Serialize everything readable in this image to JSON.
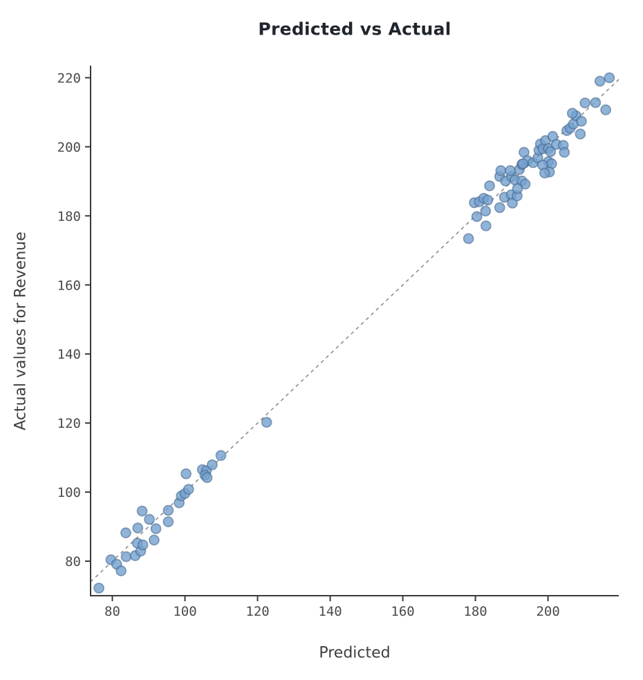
{
  "colors": {
    "background": "#ffffff",
    "axis": "#383838",
    "tick_label": "#4a4a4a",
    "title": "#21252d",
    "axis_label": "#3e3e3e",
    "point_fill": "#74a1ce",
    "point_stroke": "#41628b",
    "reference_line": "#8c8c8c"
  },
  "chart_data": {
    "type": "scatter",
    "title": "Predicted vs Actual",
    "xlabel": "Predicted",
    "ylabel": "Actual values for Revenue",
    "xlim": [
      74,
      219.5
    ],
    "ylim": [
      70,
      223.5
    ],
    "x_ticks": [
      80,
      100,
      120,
      140,
      160,
      180,
      200
    ],
    "y_ticks": [
      80,
      100,
      120,
      140,
      160,
      180,
      200,
      220
    ],
    "grid": false,
    "legend": "none",
    "identity_line": {
      "style": "dashed",
      "from": [
        74,
        74
      ],
      "to": [
        219.5,
        219.5
      ],
      "color": "#8c8c8c"
    },
    "point_style": {
      "fill": "#74a1ce",
      "fill_opacity": 0.8,
      "stroke": "#41628b",
      "stroke_opacity": 0.55,
      "radius": 7
    },
    "points": [
      [
        76.3,
        72.2
      ],
      [
        79.6,
        80.4
      ],
      [
        81.2,
        79.1
      ],
      [
        82.4,
        77.2
      ],
      [
        83.8,
        81.3
      ],
      [
        83.7,
        88.2
      ],
      [
        86.3,
        81.6
      ],
      [
        86.9,
        85.2
      ],
      [
        87.8,
        82.9
      ],
      [
        87.0,
        89.6
      ],
      [
        88.2,
        94.5
      ],
      [
        88.4,
        84.7
      ],
      [
        90.2,
        92.1
      ],
      [
        91.5,
        86.1
      ],
      [
        92.0,
        89.4
      ],
      [
        95.4,
        91.4
      ],
      [
        95.4,
        94.7
      ],
      [
        98.4,
        96.9
      ],
      [
        99.0,
        98.9
      ],
      [
        100.0,
        99.6
      ],
      [
        101.0,
        100.8
      ],
      [
        100.3,
        105.3
      ],
      [
        104.8,
        106.5
      ],
      [
        105.9,
        106.2
      ],
      [
        105.5,
        104.9
      ],
      [
        106.1,
        104.2
      ],
      [
        107.5,
        107.9
      ],
      [
        109.9,
        110.6
      ],
      [
        122.5,
        120.2
      ],
      [
        178.1,
        173.4
      ],
      [
        180.4,
        179.8
      ],
      [
        182.9,
        177.1
      ],
      [
        179.7,
        183.8
      ],
      [
        181.1,
        184.1
      ],
      [
        182.3,
        185.1
      ],
      [
        183.4,
        184.6
      ],
      [
        182.8,
        181.4
      ],
      [
        183.9,
        188.7
      ],
      [
        186.7,
        182.4
      ],
      [
        186.7,
        191.4
      ],
      [
        187.0,
        193.1
      ],
      [
        188.0,
        185.4
      ],
      [
        188.3,
        190.1
      ],
      [
        189.9,
        186.1
      ],
      [
        189.9,
        191.4
      ],
      [
        190.2,
        183.7
      ],
      [
        190.9,
        190.4
      ],
      [
        191.5,
        185.8
      ],
      [
        192.1,
        193.4
      ],
      [
        192.8,
        190.1
      ],
      [
        193.7,
        189.2
      ],
      [
        191.6,
        187.9
      ],
      [
        189.6,
        193.1
      ],
      [
        192.8,
        194.9
      ],
      [
        193.4,
        198.4
      ],
      [
        194.3,
        196.0
      ],
      [
        195.9,
        195.4
      ],
      [
        193.1,
        195.1
      ],
      [
        197.2,
        196.8
      ],
      [
        197.5,
        199.0
      ],
      [
        197.9,
        200.8
      ],
      [
        198.6,
        199.4
      ],
      [
        199.3,
        201.8
      ],
      [
        200.1,
        199.5
      ],
      [
        200.7,
        198.6
      ],
      [
        201.3,
        203.0
      ],
      [
        202.3,
        200.7
      ],
      [
        204.2,
        200.4
      ],
      [
        204.5,
        198.4
      ],
      [
        200.1,
        195.7
      ],
      [
        201.0,
        195.1
      ],
      [
        198.5,
        194.7
      ],
      [
        200.4,
        192.7
      ],
      [
        199.1,
        192.4
      ],
      [
        205.2,
        204.7
      ],
      [
        206.1,
        205.4
      ],
      [
        207.0,
        206.6
      ],
      [
        207.7,
        209.0
      ],
      [
        206.7,
        209.7
      ],
      [
        209.2,
        207.4
      ],
      [
        208.9,
        203.7
      ],
      [
        210.2,
        212.7
      ],
      [
        213.1,
        212.8
      ],
      [
        215.9,
        210.7
      ],
      [
        214.3,
        219.0
      ],
      [
        216.9,
        220.0
      ]
    ]
  }
}
